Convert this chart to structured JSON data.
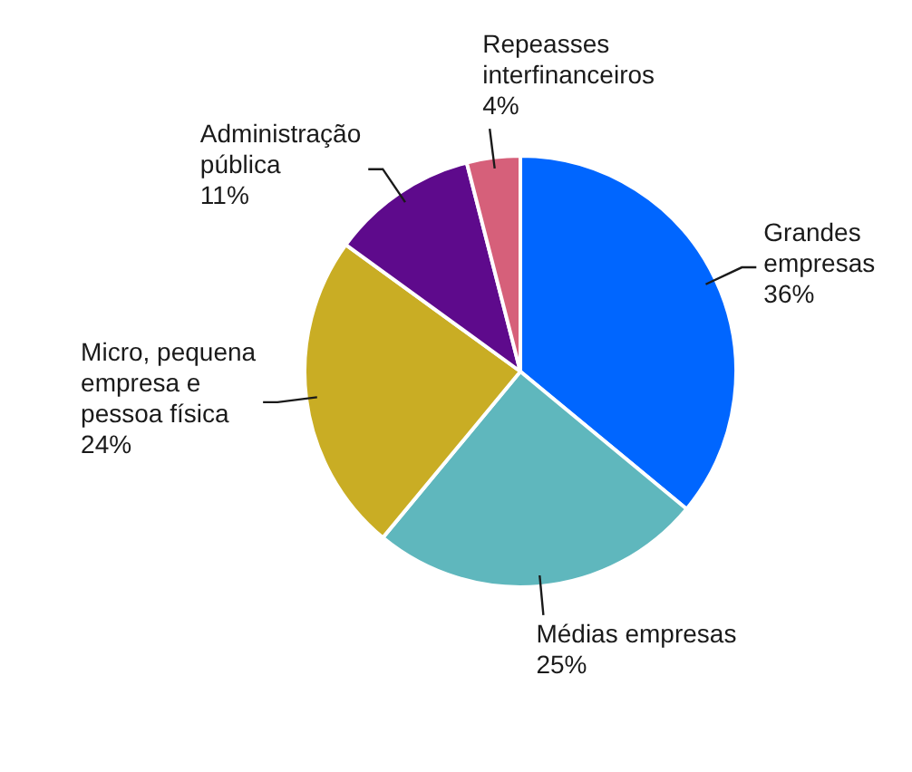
{
  "chart_data": {
    "type": "pie",
    "categories": [
      "Grandes empresas",
      "Médias empresas",
      "Micro, pequena empresa e pessoa física",
      "Administração pública",
      "Repeasses interfinanceiros"
    ],
    "values": [
      36,
      25,
      24,
      11,
      4
    ],
    "value_labels": [
      "36%",
      "25%",
      "24%",
      "11%",
      "4%"
    ],
    "colors": [
      "#0066ff",
      "#5fb7bd",
      "#c9ad24",
      "#5e0a8c",
      "#d6607a"
    ],
    "legend": false
  }
}
